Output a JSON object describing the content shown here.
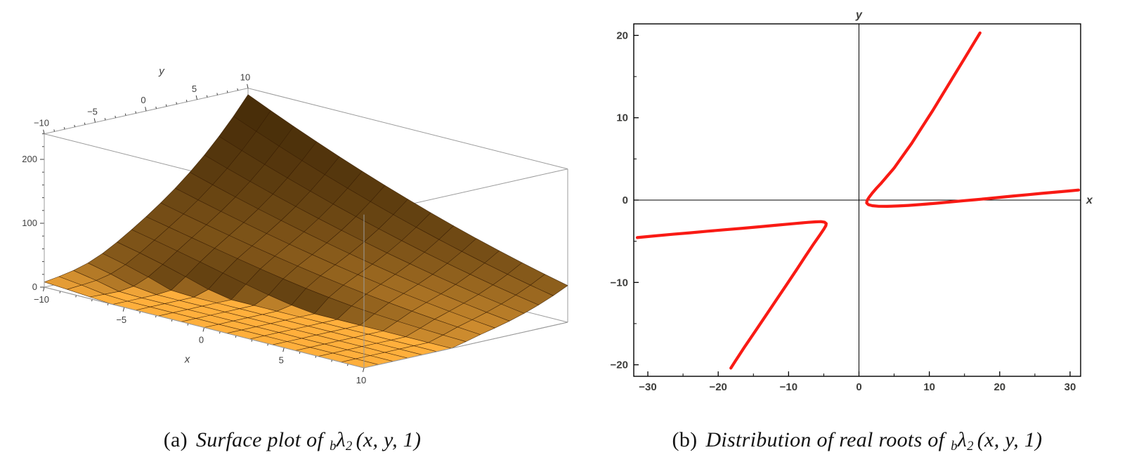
{
  "figure": {
    "background": "#ffffff"
  },
  "captions": {
    "a": {
      "label": "(a)",
      "text": "Surface plot of",
      "presub": "b",
      "symbol": "λ",
      "sub": "2",
      "args": "(x, y, 1)"
    },
    "b": {
      "label": "(b)",
      "text": "Distribution of real roots of",
      "presub": "b",
      "symbol": "λ",
      "sub": "2",
      "args": "(x, y, 1)"
    }
  },
  "chart_data": [
    {
      "type": "surface",
      "panel": "a",
      "title": "",
      "xlabel": "x",
      "ylabel": "y",
      "x_range": [
        -10,
        10
      ],
      "y_range": [
        -10,
        10
      ],
      "z_range": [
        0,
        240
      ],
      "x_ticks": {
        "values": [
          -10,
          -5,
          0,
          5,
          10
        ],
        "labels": [
          "−10",
          "−5",
          "0",
          "5",
          "10"
        ]
      },
      "y_ticks": {
        "values": [
          -10,
          -5,
          0,
          5,
          10
        ],
        "labels": [
          "−10",
          "−5",
          "0",
          "5",
          "10"
        ]
      },
      "z_ticks": {
        "values": [
          0,
          100,
          200
        ],
        "labels": [
          "0",
          "100",
          "200"
        ]
      },
      "mesh_divisions": 14,
      "formula": "Math.max(0, Math.pow(y - x + 20, 2) * (y + 14) / 167 - 75 * Math.exp(-Math.pow(y + 5.5, 2) / 14 - Math.pow(x - 2, 2) / 60))",
      "colors": {
        "surface_bright": "#FFAF3C",
        "surface_dark": "#2E1B02",
        "box_edge": "#9b9b9b",
        "mesh_line": "rgba(55,28,0,0.8)",
        "label": "#3f3f3f"
      }
    },
    {
      "type": "line",
      "panel": "b",
      "title": "",
      "xlabel": "x",
      "ylabel": "y",
      "x_range": [
        -32,
        31.5
      ],
      "y_range": [
        -21.4,
        21.4
      ],
      "x_ticks": {
        "values": [
          -30,
          -20,
          -10,
          0,
          10,
          20,
          30
        ],
        "labels": [
          "−30",
          "−20",
          "−10",
          "0",
          "10",
          "20",
          "30"
        ]
      },
      "y_ticks": {
        "values": [
          -20,
          -10,
          0,
          10,
          20
        ],
        "labels": [
          "−20",
          "−10",
          "0",
          "10",
          "20"
        ]
      },
      "axes_through_origin": true,
      "frame": true,
      "legend": "none",
      "grid": false,
      "curve_color": "#F91A14",
      "stroke_width": 4.2,
      "series": [
        {
          "name": "right-branch",
          "points": [
            [
              17.2,
              20.3
            ],
            [
              16.2,
              18.9
            ],
            [
              15,
              17.2
            ],
            [
              13.5,
              15.1
            ],
            [
              12,
              13.0
            ],
            [
              10.5,
              10.9
            ],
            [
              9,
              8.9
            ],
            [
              7.5,
              6.9
            ],
            [
              6,
              5.1
            ],
            [
              5,
              3.9
            ],
            [
              4,
              2.9
            ],
            [
              3.2,
              2.1
            ],
            [
              2.5,
              1.45
            ],
            [
              1.9,
              0.85
            ],
            [
              1.45,
              0.35
            ],
            [
              1.15,
              -0.05
            ],
            [
              1.1,
              -0.35
            ],
            [
              1.35,
              -0.55
            ],
            [
              1.9,
              -0.68
            ],
            [
              2.8,
              -0.75
            ],
            [
              4,
              -0.76
            ],
            [
              5.5,
              -0.72
            ],
            [
              7,
              -0.65
            ],
            [
              9,
              -0.52
            ],
            [
              11,
              -0.38
            ],
            [
              13,
              -0.22
            ],
            [
              15,
              -0.07
            ],
            [
              16.5,
              0.04
            ],
            [
              18,
              0.16
            ],
            [
              20,
              0.33
            ],
            [
              22,
              0.5
            ],
            [
              24,
              0.66
            ],
            [
              26,
              0.82
            ],
            [
              28,
              0.97
            ],
            [
              29.7,
              1.1
            ],
            [
              31.2,
              1.22
            ]
          ]
        },
        {
          "name": "left-branch",
          "points": [
            [
              -31.5,
              -4.55
            ],
            [
              -29,
              -4.35
            ],
            [
              -26.5,
              -4.15
            ],
            [
              -24,
              -3.97
            ],
            [
              -21.5,
              -3.78
            ],
            [
              -19,
              -3.6
            ],
            [
              -16.5,
              -3.42
            ],
            [
              -14,
              -3.23
            ],
            [
              -12,
              -3.07
            ],
            [
              -10,
              -2.92
            ],
            [
              -8.5,
              -2.8
            ],
            [
              -7.2,
              -2.7
            ],
            [
              -6.2,
              -2.64
            ],
            [
              -5.4,
              -2.62
            ],
            [
              -4.9,
              -2.68
            ],
            [
              -4.65,
              -2.85
            ],
            [
              -4.7,
              -3.1
            ],
            [
              -5.0,
              -3.55
            ],
            [
              -5.6,
              -4.3
            ],
            [
              -6.5,
              -5.4
            ],
            [
              -7.6,
              -6.8
            ],
            [
              -8.9,
              -8.5
            ],
            [
              -10.3,
              -10.3
            ],
            [
              -11.8,
              -12.2
            ],
            [
              -13.3,
              -14.1
            ],
            [
              -14.8,
              -16.0
            ],
            [
              -16.3,
              -17.9
            ],
            [
              -17.6,
              -19.6
            ],
            [
              -18.2,
              -20.4
            ]
          ]
        }
      ],
      "colors": {
        "frame": "#000000",
        "axis": "#000000",
        "tick_label": "#3d3d3b"
      }
    }
  ]
}
